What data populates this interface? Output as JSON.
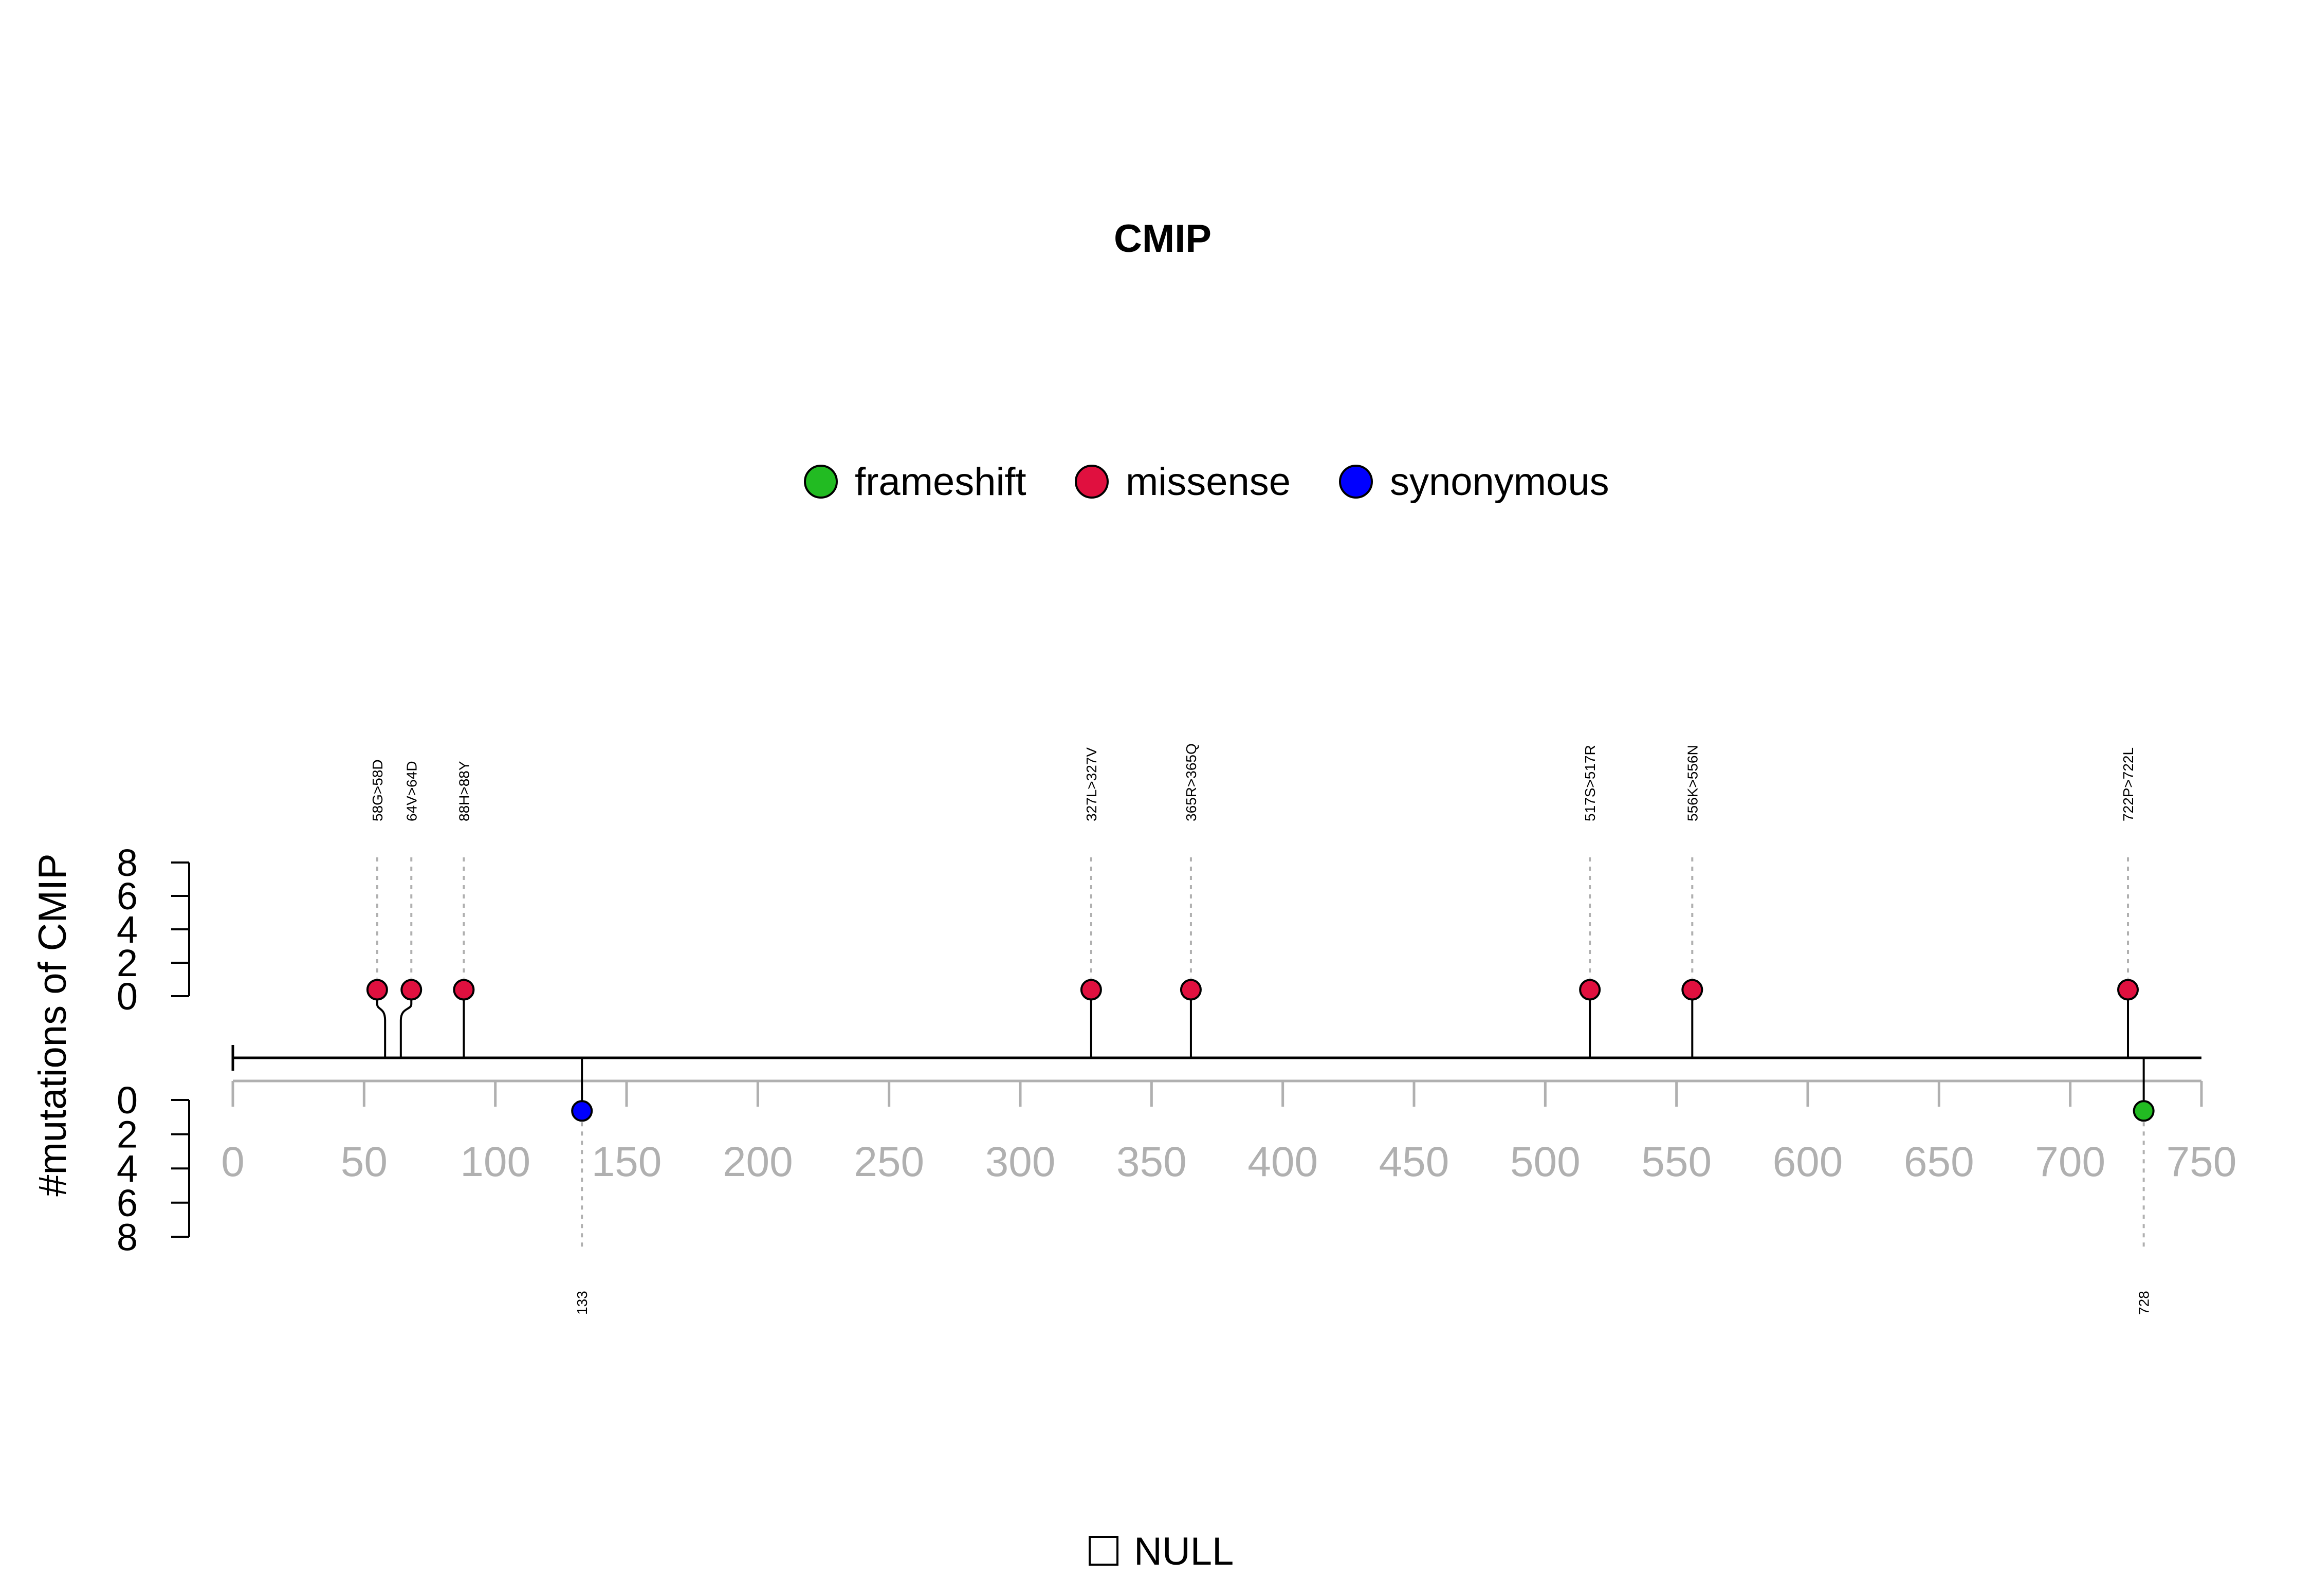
{
  "chart_data": {
    "type": "lollipop",
    "title": "CMIP",
    "ylabel": "#mutations of CMIP",
    "xlim": [
      0,
      750
    ],
    "x_ticks": [
      0,
      50,
      100,
      150,
      200,
      250,
      300,
      350,
      400,
      450,
      500,
      550,
      600,
      650,
      700,
      750
    ],
    "y_ticks_top": [
      0,
      2,
      4,
      6,
      8
    ],
    "y_ticks_bottom": [
      0,
      2,
      4,
      6,
      8
    ],
    "ylim": [
      0,
      8
    ],
    "legend": [
      {
        "name": "frameshift",
        "color": "#22bb22"
      },
      {
        "name": "missense",
        "color": "#e0103f"
      },
      {
        "name": "synonymous",
        "color": "#0000ff"
      }
    ],
    "domain_legend": [
      {
        "name": "NULL",
        "color": "#ffffff"
      }
    ],
    "mutations_top": [
      {
        "position": 58,
        "label": "58G>58D",
        "type": "missense",
        "count": 1,
        "head_x": 55
      },
      {
        "position": 64,
        "label": "64V>64D",
        "type": "missense",
        "count": 1,
        "head_x": 68
      },
      {
        "position": 88,
        "label": "88H>88Y",
        "type": "missense",
        "count": 1,
        "head_x": 88
      },
      {
        "position": 327,
        "label": "327L>327V",
        "type": "missense",
        "count": 1,
        "head_x": 327
      },
      {
        "position": 365,
        "label": "365R>365Q",
        "type": "missense",
        "count": 1,
        "head_x": 365
      },
      {
        "position": 517,
        "label": "517S>517R",
        "type": "missense",
        "count": 1,
        "head_x": 517
      },
      {
        "position": 556,
        "label": "556K>556N",
        "type": "missense",
        "count": 1,
        "head_x": 556
      },
      {
        "position": 722,
        "label": "722P>722L",
        "type": "missense",
        "count": 1,
        "head_x": 722
      }
    ],
    "mutations_bottom": [
      {
        "position": 133,
        "label": "133",
        "type": "synonymous",
        "count": 1,
        "head_x": 133
      },
      {
        "position": 728,
        "label": "728",
        "type": "frameshift",
        "count": 1,
        "head_x": 728
      }
    ]
  }
}
